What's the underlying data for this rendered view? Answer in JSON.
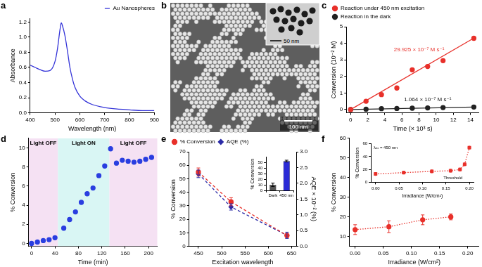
{
  "chart_data": [
    {
      "panel": "a",
      "type": "line",
      "x_label": "Wavelength (nm)",
      "y_label": "Absorbance",
      "xlim": [
        400,
        900
      ],
      "xticks": [
        400,
        500,
        600,
        700,
        800,
        900
      ],
      "ylim": [
        0,
        1.25
      ],
      "yticks": [
        {
          "value": 0,
          "label": "0.0"
        },
        0.2,
        0.4,
        0.6,
        0.8,
        {
          "value": 1,
          "label": "1.0"
        },
        1.2
      ],
      "legend": "upper right",
      "grid": false,
      "series": [
        {
          "name": "Au Nanospheres",
          "color": "#3434d8",
          "marker": "none",
          "line_style": "solid",
          "x": [
            400,
            420,
            440,
            460,
            480,
            500,
            510,
            520,
            525,
            530,
            540,
            550,
            560,
            570,
            580,
            600,
            620,
            650,
            700,
            750,
            800,
            850,
            900
          ],
          "values": [
            0.63,
            0.6,
            0.57,
            0.55,
            0.56,
            0.68,
            0.85,
            1.1,
            1.19,
            1.15,
            1.02,
            0.82,
            0.6,
            0.45,
            0.34,
            0.22,
            0.16,
            0.11,
            0.07,
            0.05,
            0.04,
            0.03,
            0.03
          ]
        }
      ]
    },
    {
      "panel": "c",
      "type": "scatter",
      "x_label": "Time (× 10³ s)",
      "y_label": "Conversion (10⁻² M)",
      "xlim": [
        -0.5,
        15
      ],
      "xticks": [
        0,
        2,
        4,
        6,
        8,
        10,
        12,
        14
      ],
      "ylim": [
        -0.2,
        5
      ],
      "yticks": [
        0,
        1,
        2,
        3,
        4,
        5
      ],
      "legend": "upper left",
      "grid": false,
      "series": [
        {
          "name": "Reaction under 450 nm excitation",
          "color": "#e8302a",
          "marker": "circle",
          "line_style": "none",
          "x": [
            0,
            1.8,
            3.6,
            5.4,
            7.2,
            9,
            10.8,
            14.4
          ],
          "values": [
            0,
            0.5,
            0.9,
            1.3,
            2.4,
            2.6,
            2.95,
            4.3
          ],
          "fit_x": [
            0,
            14.4
          ],
          "fit_y": [
            0,
            4.31
          ]
        },
        {
          "name": "Reaction in the dark",
          "color": "#222222",
          "marker": "circle",
          "line_style": "none",
          "x": [
            0,
            1.8,
            3.6,
            5.4,
            7.2,
            9,
            10.8,
            14.4
          ],
          "values": [
            0,
            0.02,
            0.05,
            0.06,
            0.08,
            0.1,
            0.12,
            0.15
          ],
          "fit_x": [
            0,
            14.4
          ],
          "fit_y": [
            0,
            0.153
          ]
        }
      ],
      "annotations": [
        {
          "text": "29.925 × 10⁻⁷ M s⁻¹",
          "x": 8,
          "y": 3.6,
          "color": "#e8302a"
        },
        {
          "text": "1.064 × 10⁻⁷ M s⁻¹",
          "x": 9,
          "y": 0.6,
          "color": "#111111"
        }
      ]
    },
    {
      "panel": "d",
      "type": "scatter",
      "x_label": "Time (min)",
      "y_label": "% Conversion",
      "xlim": [
        -5,
        215
      ],
      "xticks": [
        0,
        40,
        80,
        120,
        160,
        200
      ],
      "ylim": [
        -0.3,
        11
      ],
      "yticks": [
        0,
        2,
        4,
        6,
        8,
        10
      ],
      "grid": false,
      "regions": [
        {
          "label": "Light OFF",
          "from": -5,
          "to": 45,
          "color": "#f5e1f3"
        },
        {
          "label": "Light ON",
          "from": 45,
          "to": 133,
          "color": "#d9f6f4"
        },
        {
          "label": "Light OFF",
          "from": 133,
          "to": 215,
          "color": "#f5e1f3"
        }
      ],
      "series": [
        {
          "color": "#2a3ee0",
          "marker": "circle",
          "line_style": "none",
          "x": [
            0,
            10,
            20,
            30,
            40,
            55,
            65,
            75,
            85,
            95,
            105,
            115,
            125,
            135,
            145,
            155,
            165,
            175,
            185,
            195,
            205
          ],
          "values": [
            0,
            0.15,
            0.3,
            0.4,
            0.6,
            1.6,
            2.5,
            3.3,
            4.3,
            5.2,
            5.8,
            7.1,
            8.1,
            9.9,
            8.4,
            8.7,
            8.6,
            8.5,
            8.6,
            8.8,
            9.0
          ]
        }
      ]
    },
    {
      "panel": "e",
      "type": "scatter",
      "x_label": "Excitation wavelength",
      "y_label": "% Conversion",
      "y2_label": "AQE × 10⁻² (%)",
      "xlim": [
        430,
        660
      ],
      "xticks": [
        450,
        500,
        550,
        600,
        650
      ],
      "ylim": [
        0,
        70
      ],
      "yticks": [
        0,
        10,
        20,
        30,
        40,
        50,
        60,
        70
      ],
      "y2lim": [
        0,
        3
      ],
      "y2ticks": [
        {
          "value": 0,
          "label": "0.0"
        },
        0.5,
        {
          "value": 1,
          "label": "1.0"
        },
        1.5,
        {
          "value": 2,
          "label": "2.0"
        },
        2.5,
        {
          "value": 3,
          "label": "3.0"
        }
      ],
      "legend": "upper left",
      "grid": false,
      "series": [
        {
          "name": "% Conversion",
          "color": "#e8302a",
          "marker": "circle",
          "line_style": "dashed",
          "x": [
            450,
            520,
            640
          ],
          "values": [
            55,
            33,
            8
          ],
          "errors": [
            3,
            3,
            1.5
          ]
        },
        {
          "name": "AQE (%)",
          "color": "#2a2aa6",
          "marker": "diamond",
          "line_style": "dashed",
          "axis": "y2",
          "x": [
            450,
            520,
            640
          ],
          "values": [
            2.3,
            1.25,
            0.35
          ],
          "errors": [
            0.12,
            0.1,
            0.1
          ]
        }
      ],
      "inset": {
        "type": "bar",
        "y_label": "% Conversion",
        "categories": [
          "Dark",
          "450 nm"
        ],
        "values": [
          11,
          53
        ],
        "errors": [
          3,
          1.5
        ],
        "colors": [
          "#555555",
          "#2b2bd6"
        ],
        "ylim": [
          0,
          60
        ],
        "yticks": [
          0,
          10,
          20,
          30,
          40,
          50
        ],
        "grid": false
      }
    },
    {
      "panel": "f",
      "type": "scatter",
      "x_label": "Irradiance (W/cm²)",
      "y_label": "% Conversion",
      "xlim": [
        -0.01,
        0.22
      ],
      "xticks": [
        {
          "value": 0,
          "label": "0.00"
        },
        0.05,
        {
          "value": 0.1,
          "label": "0.10"
        },
        0.15,
        {
          "value": 0.2,
          "label": "0.20"
        }
      ],
      "ylim": [
        5,
        60
      ],
      "yticks": [
        10,
        20,
        30,
        40,
        50,
        60
      ],
      "grid": false,
      "series": [
        {
          "color": "#e8302a",
          "marker": "circle",
          "line_style": "dotted",
          "x": [
            0,
            0.06,
            0.12,
            0.17
          ],
          "values": [
            13.5,
            15,
            18.5,
            20
          ],
          "errors": [
            2.5,
            3,
            2.5,
            1.5
          ]
        }
      ],
      "inset": {
        "type": "scatter",
        "x_label": "Irradiance (W/cm²)",
        "y_label": "% Conversion",
        "xlim": [
          -0.01,
          0.21
        ],
        "xticks": [
          {
            "value": 0,
            "label": "0.00"
          },
          0.05,
          {
            "value": 0.1,
            "label": "0.10"
          },
          0.15,
          {
            "value": 0.2,
            "label": "0.20"
          }
        ],
        "ylim": [
          0,
          60
        ],
        "yticks": [
          0,
          20,
          40,
          60
        ],
        "grid": false,
        "series": [
          {
            "color": "#e8302a",
            "marker": "circle",
            "line_style": "dotted",
            "x": [
              0,
              0.06,
              0.12,
              0.16,
              0.18,
              0.19,
              0.2
            ],
            "values": [
              13,
              15,
              17,
              18,
              20,
              28,
              54
            ],
            "errors": [
              2,
              2,
              2,
              2,
              2,
              2,
              2
            ]
          }
        ],
        "annotations": [
          {
            "text": "λₑₓ = 450 nm"
          },
          {
            "text": "Threshold",
            "x": 0.165,
            "y": 7
          }
        ]
      }
    }
  ],
  "image": {
    "panel": "b",
    "scale_bar": "100 nm",
    "inset_scale_bar": "50 nm"
  }
}
